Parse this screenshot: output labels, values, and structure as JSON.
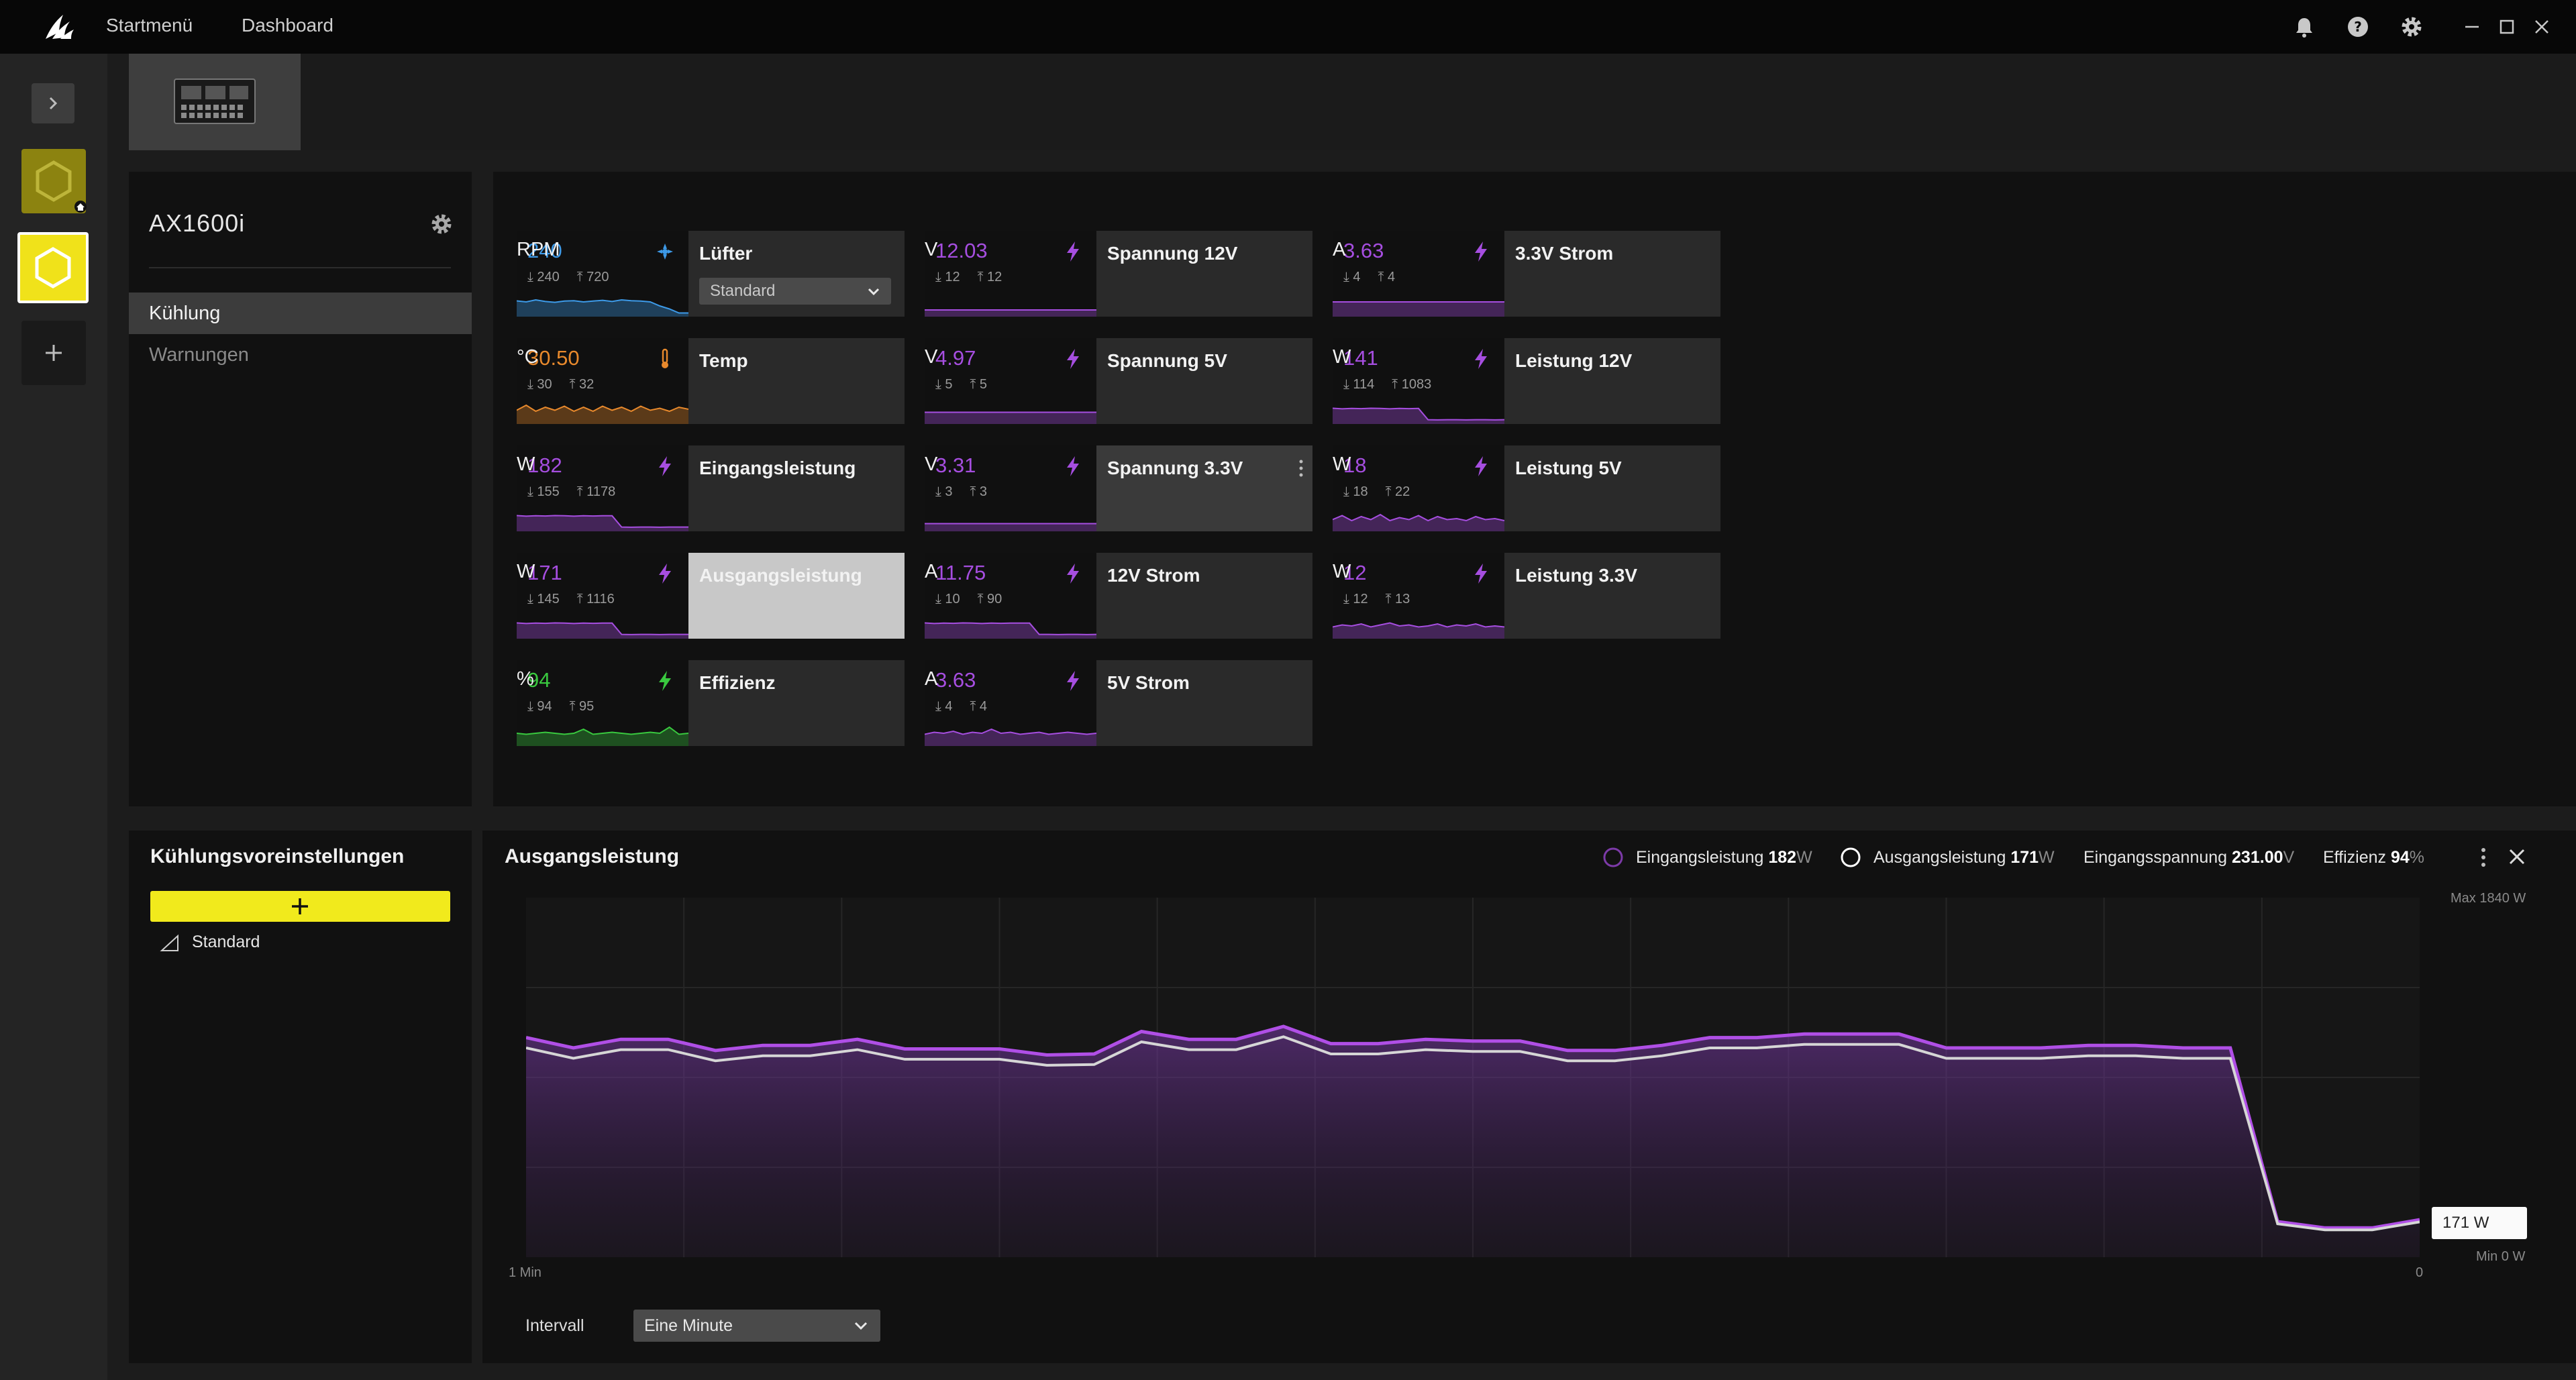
{
  "topbar": {
    "nav": [
      {
        "label": "Startmenü"
      },
      {
        "label": "Dashboard"
      }
    ],
    "icons": [
      "bell-icon",
      "help-icon",
      "gear-icon"
    ],
    "window_controls": [
      "minimize-icon",
      "maximize-icon",
      "close-icon"
    ]
  },
  "device": {
    "name": "AX1600i",
    "nav": [
      {
        "label": "Kühlung",
        "active": true
      },
      {
        "label": "Warnungen",
        "active": false
      }
    ]
  },
  "sensors": [
    {
      "value": "240",
      "unit": "RPM",
      "min": "240",
      "max": "720",
      "label": "Lüfter",
      "color": "#3d9ae8",
      "icon": "fan-icon",
      "dropdown": "Standard",
      "spark": [
        0.35,
        0.4,
        0.3,
        0.38,
        0.42,
        0.36,
        0.34,
        0.4,
        0.36,
        0.32,
        0.38,
        0.3,
        0.34,
        0.36,
        0.4,
        0.6,
        0.75,
        0.95,
        0.95
      ]
    },
    {
      "value": "12.03",
      "unit": "V",
      "min": "12",
      "max": "12",
      "label": "Spannung 12V",
      "color": "#a64ee0",
      "icon": "bolt-icon",
      "spark": [
        0.8,
        0.8,
        0.8,
        0.8,
        0.8,
        0.8,
        0.8,
        0.8,
        0.8,
        0.8,
        0.8,
        0.8,
        0.8,
        0.8,
        0.8,
        0.8,
        0.8,
        0.8,
        0.8
      ]
    },
    {
      "value": "3.63",
      "unit": "A",
      "min": "4",
      "max": "4",
      "label": "3.3V Strom",
      "color": "#a64ee0",
      "icon": "bolt-icon",
      "spark": [
        0.4,
        0.4,
        0.4,
        0.4,
        0.4,
        0.4,
        0.4,
        0.4,
        0.4,
        0.4,
        0.4,
        0.4,
        0.4,
        0.4,
        0.4,
        0.4,
        0.4,
        0.4,
        0.4
      ]
    },
    {
      "value": "30.50",
      "unit": "°C",
      "min": "30",
      "max": "32",
      "label": "Temp",
      "color": "#e8892c",
      "icon": "thermometer-icon",
      "spark": [
        0.45,
        0.2,
        0.5,
        0.3,
        0.45,
        0.25,
        0.5,
        0.3,
        0.5,
        0.25,
        0.45,
        0.3,
        0.5,
        0.25,
        0.45,
        0.35,
        0.5,
        0.3,
        0.4
      ]
    },
    {
      "value": "4.97",
      "unit": "V",
      "min": "5",
      "max": "5",
      "label": "Spannung 5V",
      "color": "#a64ee0",
      "icon": "bolt-icon",
      "spark": [
        0.55,
        0.55,
        0.55,
        0.55,
        0.55,
        0.55,
        0.55,
        0.55,
        0.55,
        0.55,
        0.55,
        0.55,
        0.55,
        0.55,
        0.55,
        0.55,
        0.55,
        0.55,
        0.55
      ]
    },
    {
      "value": "141",
      "unit": "W",
      "min": "114",
      "max": "1083",
      "label": "Leistung 12V",
      "color": "#a64ee0",
      "icon": "bolt-icon",
      "spark": [
        0.35,
        0.38,
        0.36,
        0.37,
        0.35,
        0.36,
        0.38,
        0.36,
        0.37,
        0.36,
        0.92,
        0.93,
        0.92,
        0.92,
        0.93,
        0.92,
        0.92,
        0.93,
        0.92
      ]
    },
    {
      "value": "182",
      "unit": "W",
      "min": "155",
      "max": "1178",
      "label": "Eingangsleistung",
      "color": "#a64ee0",
      "icon": "bolt-icon",
      "spark": [
        0.35,
        0.38,
        0.36,
        0.37,
        0.35,
        0.36,
        0.38,
        0.36,
        0.37,
        0.36,
        0.36,
        0.92,
        0.93,
        0.92,
        0.92,
        0.93,
        0.92,
        0.92,
        0.92
      ]
    },
    {
      "value": "3.31",
      "unit": "V",
      "min": "3",
      "max": "3",
      "label": "Spannung 3.3V",
      "color": "#a64ee0",
      "icon": "bolt-icon",
      "spark": [
        0.75,
        0.75,
        0.75,
        0.75,
        0.75,
        0.75,
        0.75,
        0.75,
        0.75,
        0.75,
        0.75,
        0.75,
        0.75,
        0.75,
        0.75,
        0.75,
        0.75,
        0.75,
        0.75
      ]
    },
    {
      "value": "18",
      "unit": "W",
      "min": "18",
      "max": "22",
      "label": "Leistung 5V",
      "color": "#a64ee0",
      "icon": "bolt-icon",
      "spark": [
        0.55,
        0.35,
        0.6,
        0.4,
        0.55,
        0.3,
        0.6,
        0.45,
        0.55,
        0.35,
        0.6,
        0.4,
        0.55,
        0.5,
        0.6,
        0.4,
        0.55,
        0.5,
        0.6
      ]
    },
    {
      "value": "171",
      "unit": "W",
      "min": "145",
      "max": "1116",
      "label": "Ausgangsleistung",
      "color": "#a64ee0",
      "icon": "bolt-icon",
      "spark": [
        0.35,
        0.38,
        0.36,
        0.37,
        0.35,
        0.36,
        0.38,
        0.36,
        0.37,
        0.36,
        0.36,
        0.92,
        0.93,
        0.92,
        0.92,
        0.93,
        0.92,
        0.92,
        0.92
      ]
    },
    {
      "value": "11.75",
      "unit": "A",
      "min": "10",
      "max": "90",
      "label": "12V Strom",
      "color": "#a64ee0",
      "icon": "bolt-icon",
      "spark": [
        0.35,
        0.38,
        0.36,
        0.37,
        0.35,
        0.36,
        0.38,
        0.36,
        0.37,
        0.36,
        0.36,
        0.36,
        0.92,
        0.92,
        0.93,
        0.92,
        0.92,
        0.93,
        0.92
      ]
    },
    {
      "value": "12",
      "unit": "W",
      "min": "12",
      "max": "13",
      "label": "Leistung 3.3V",
      "color": "#a64ee0",
      "icon": "bolt-icon",
      "spark": [
        0.55,
        0.45,
        0.5,
        0.4,
        0.55,
        0.45,
        0.35,
        0.5,
        0.45,
        0.55,
        0.5,
        0.4,
        0.55,
        0.45,
        0.5,
        0.4,
        0.55,
        0.5,
        0.55
      ]
    },
    {
      "value": "94",
      "unit": "%",
      "min": "94",
      "max": "95",
      "label": "Effizienz",
      "color": "#39c93f",
      "icon": "bolt-icon",
      "spark": [
        0.5,
        0.55,
        0.5,
        0.45,
        0.5,
        0.55,
        0.5,
        0.3,
        0.55,
        0.5,
        0.45,
        0.5,
        0.55,
        0.5,
        0.45,
        0.5,
        0.2,
        0.55,
        0.5
      ]
    },
    {
      "value": "3.63",
      "unit": "A",
      "min": "4",
      "max": "4",
      "label": "5V Strom",
      "color": "#a64ee0",
      "icon": "bolt-icon",
      "spark": [
        0.55,
        0.45,
        0.5,
        0.4,
        0.55,
        0.45,
        0.5,
        0.3,
        0.5,
        0.45,
        0.55,
        0.5,
        0.45,
        0.55,
        0.5,
        0.45,
        0.5,
        0.55,
        0.5
      ]
    }
  ],
  "presets": {
    "title": "Kühlungsvoreinstellungen",
    "items": [
      {
        "label": "Standard"
      }
    ]
  },
  "graph": {
    "title": "Ausgangsleistung",
    "legend": [
      {
        "label": "Eingangsleistung",
        "value": "182",
        "unit": "W",
        "marker": "#7c3aa8"
      },
      {
        "label": "Ausgangsleistung",
        "value": "171",
        "unit": "W",
        "marker": "#ffffff"
      },
      {
        "label": "Eingangsspannung",
        "value": "231.00",
        "unit": "V"
      },
      {
        "label": "Effizienz",
        "value": "94",
        "unit": "%"
      }
    ],
    "max_label": "Max 1840 W",
    "min_label": "Min 0 W",
    "x_start_label": "1 Min",
    "x_end_label": "0",
    "tooltip": "171 W",
    "interval_label": "Intervall",
    "interval_value": "Eine Minute"
  },
  "chart_data": {
    "type": "area",
    "title": "Ausgangsleistung",
    "ylim": [
      0,
      1840
    ],
    "x": [
      60,
      58.5,
      57,
      55.5,
      54,
      52.5,
      51,
      49.5,
      48,
      46.5,
      45,
      43.5,
      42,
      40.5,
      39,
      37.5,
      36,
      34.5,
      33,
      31.5,
      30,
      28.5,
      27,
      25.5,
      24,
      22.5,
      21,
      19.5,
      18,
      16.5,
      15,
      13.5,
      12,
      10.5,
      9,
      7.5,
      6,
      4.5,
      3,
      1.5,
      0
    ],
    "series": [
      {
        "name": "Eingangsleistung",
        "values": [
          1124,
          1071,
          1115,
          1115,
          1058,
          1084,
          1084,
          1115,
          1066,
          1066,
          1066,
          1035,
          1040,
          1155,
          1115,
          1115,
          1181,
          1093,
          1093,
          1115,
          1106,
          1106,
          1058,
          1058,
          1084,
          1124,
          1124,
          1142,
          1142,
          1142,
          1071,
          1071,
          1071,
          1084,
          1084,
          1071,
          1071,
          182,
          150,
          150,
          192
        ]
      },
      {
        "name": "Ausgangsleistung",
        "values": [
          1071,
          1018,
          1062,
          1062,
          1005,
          1031,
          1031,
          1062,
          1013,
          1013,
          1013,
          982,
          986,
          1102,
          1062,
          1062,
          1128,
          1040,
          1040,
          1062,
          1053,
          1053,
          1005,
          1005,
          1031,
          1071,
          1071,
          1089,
          1089,
          1089,
          1018,
          1018,
          1018,
          1031,
          1031,
          1018,
          1018,
          171,
          140,
          140,
          181
        ]
      }
    ]
  }
}
